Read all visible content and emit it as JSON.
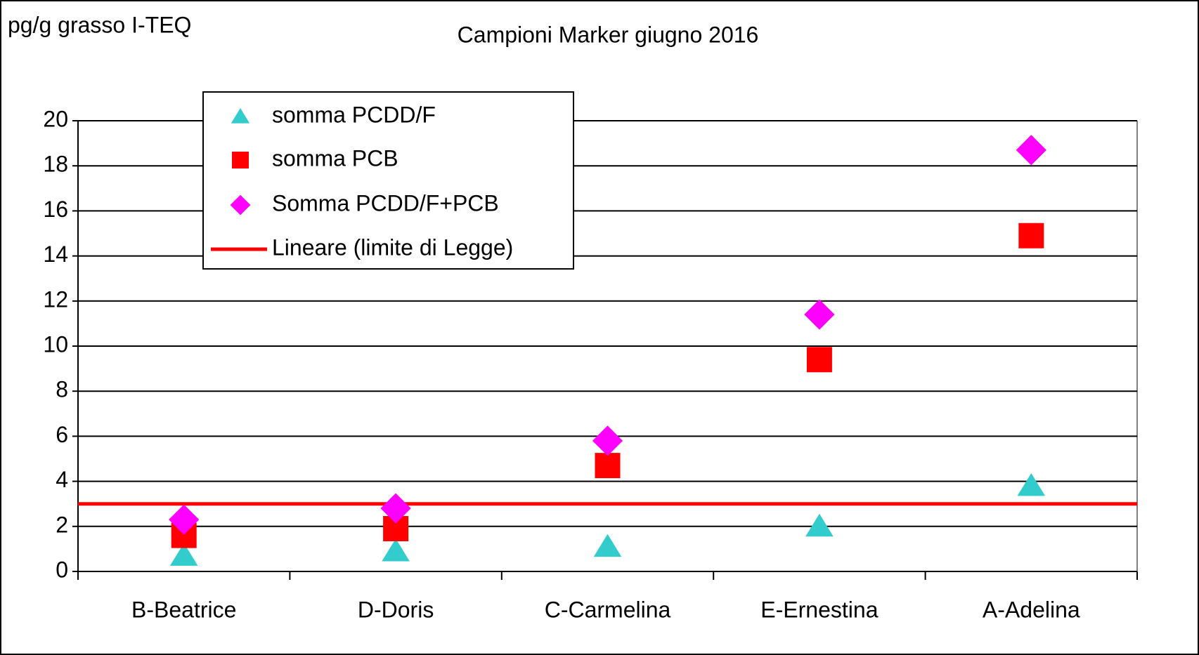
{
  "chart_data": {
    "type": "scatter",
    "title": "Campioni Marker giugno 2016",
    "y_label": "pg/g grasso I-TEQ",
    "categories": [
      "B-Beatrice",
      "D-Doris",
      "C-Carmelina",
      "E-Ernestina",
      "A-Adelina"
    ],
    "series": [
      {
        "name": "somma PCDD/F",
        "color": "#33cccc",
        "marker": "triangle",
        "values": [
          0.7,
          0.9,
          1.1,
          2.0,
          3.8
        ]
      },
      {
        "name": "somma PCB",
        "color": "#ff0000",
        "marker": "square",
        "values": [
          1.6,
          1.9,
          4.7,
          9.4,
          14.9
        ]
      },
      {
        "name": "Somma PCDD/F+PCB",
        "color": "#ff00ff",
        "marker": "diamond",
        "values": [
          2.3,
          2.8,
          5.8,
          11.4,
          18.7
        ]
      }
    ],
    "lines": [
      {
        "name": "Lineare (limite di Legge)",
        "color": "#ff0000",
        "value": 3
      }
    ],
    "ylim": [
      0,
      20
    ],
    "yticks": [
      0,
      2,
      4,
      6,
      8,
      10,
      12,
      14,
      16,
      18,
      20
    ],
    "grid": true,
    "legend": "top-left"
  }
}
